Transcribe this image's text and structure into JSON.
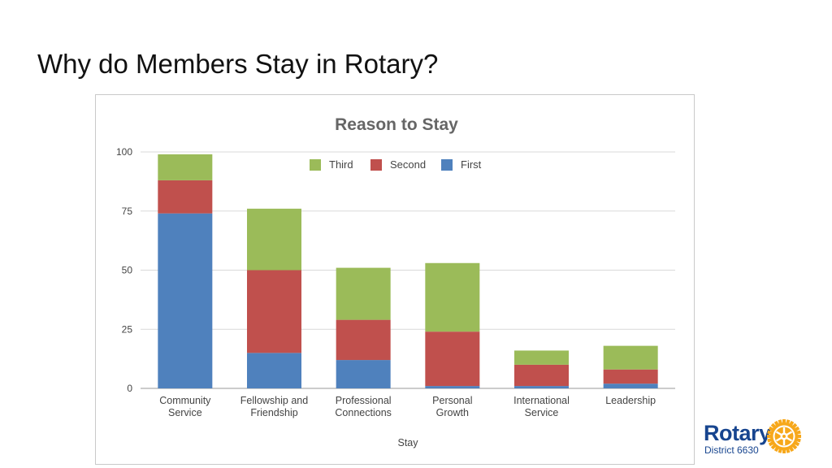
{
  "slide": {
    "title": "Why do Members Stay in Rotary?"
  },
  "colors": {
    "first": "#4f81bd",
    "second": "#c0504d",
    "third": "#9bbb59",
    "grid": "#d9d9d9",
    "brand_blue": "#17458f",
    "brand_gold": "#f7a81b"
  },
  "logo": {
    "word": "Rotary",
    "district": "District 6630"
  },
  "chart_data": {
    "type": "bar",
    "stacked": true,
    "title": "Reason to Stay",
    "xlabel": "Stay",
    "ylabel": "",
    "ylim": [
      0,
      100
    ],
    "yticks": [
      0,
      25,
      50,
      75,
      100
    ],
    "legend_position": "top-center",
    "grid": true,
    "categories": [
      [
        "Community",
        "Service"
      ],
      [
        "Fellowship and",
        "Friendship"
      ],
      [
        "Professional",
        "Connections"
      ],
      [
        "Personal",
        "Growth"
      ],
      [
        "International",
        "Service"
      ],
      [
        "Leadership"
      ]
    ],
    "series": [
      {
        "name": "First",
        "color_key": "first",
        "values": [
          74,
          15,
          12,
          1,
          1,
          2
        ]
      },
      {
        "name": "Second",
        "color_key": "second",
        "values": [
          14,
          35,
          17,
          23,
          9,
          6
        ]
      },
      {
        "name": "Third",
        "color_key": "third",
        "values": [
          11,
          26,
          22,
          29,
          6,
          10
        ]
      }
    ],
    "legend_order": [
      "Third",
      "Second",
      "First"
    ]
  }
}
